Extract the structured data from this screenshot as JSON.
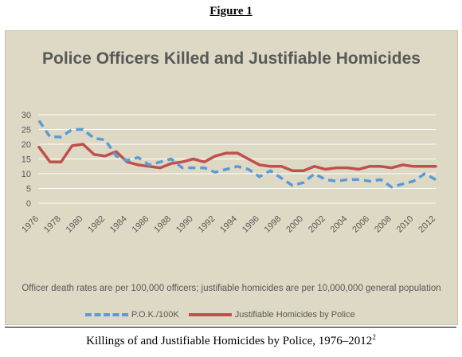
{
  "figure_label": "Figure 1",
  "caption": "Killings of and Justifiable Homicides by Police, 1976–2012",
  "caption_sup": "2",
  "colors": {
    "panel_bg": "#ddd9c4",
    "series_pok": "#5b9bd5",
    "series_jh": "#c0504d",
    "grid": "#ffffff",
    "text": "#595959"
  },
  "chart_data": {
    "type": "line",
    "title": "Police Officers Killed and Justifiable Homicides",
    "note": "Officer death rates are per 100,000 officers; justifiable homicides are per 10,000,000 general population",
    "ylim": [
      0,
      30
    ],
    "yticks": [
      0,
      5,
      10,
      15,
      20,
      25,
      30
    ],
    "xlim": [
      1976,
      2012
    ],
    "xticks": [
      1976,
      1978,
      1980,
      1982,
      1984,
      1986,
      1988,
      1990,
      1992,
      1994,
      1996,
      1998,
      2000,
      2002,
      2004,
      2006,
      2008,
      2010,
      2012
    ],
    "grid": true,
    "legend_position": "bottom",
    "x": [
      1976,
      1977,
      1978,
      1979,
      1980,
      1981,
      1982,
      1983,
      1984,
      1985,
      1986,
      1987,
      1988,
      1989,
      1990,
      1991,
      1992,
      1993,
      1994,
      1995,
      1996,
      1997,
      1998,
      1999,
      2000,
      2001,
      2002,
      2003,
      2004,
      2005,
      2006,
      2007,
      2008,
      2009,
      2010,
      2011,
      2012
    ],
    "series": [
      {
        "name": "P.O.K./100K",
        "style": "dashed",
        "values": [
          28,
          22.5,
          22.5,
          25,
          25,
          22,
          21.5,
          16,
          14.5,
          15.5,
          13,
          14,
          15,
          12,
          12,
          12,
          10.5,
          11.5,
          12.5,
          11.5,
          9,
          11,
          8.5,
          6,
          7,
          10,
          8,
          7.5,
          8,
          8,
          7.5,
          8,
          5.5,
          6.5,
          7.5,
          10,
          8
        ]
      },
      {
        "name": "Justifiable Homicides by Police",
        "style": "solid",
        "values": [
          19,
          14,
          14,
          19.5,
          20,
          16.5,
          16,
          17.5,
          14,
          13,
          12.5,
          12,
          13.5,
          14,
          15,
          14,
          16,
          17,
          17,
          15,
          13,
          12.5,
          12.5,
          11,
          11,
          12.5,
          11.5,
          12,
          12,
          11.5,
          12.5,
          12.5,
          12,
          13,
          12.5,
          12.5,
          12.5
        ]
      }
    ]
  }
}
